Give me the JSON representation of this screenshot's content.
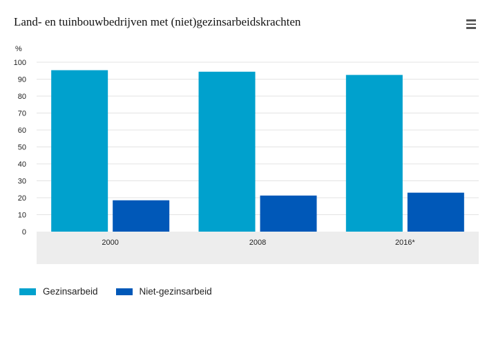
{
  "chart_data": {
    "type": "bar",
    "title": "Land- en tuinbouwbedrijven met (niet)gezinsarbeidskrachten",
    "ylabel": "%",
    "xlabel": "",
    "categories": [
      "2000",
      "2008",
      "2016*"
    ],
    "series": [
      {
        "name": "Gezinsarbeid",
        "color": "#00a1cd",
        "values": [
          95.3,
          94.4,
          92.5
        ]
      },
      {
        "name": "Niet-gezinsarbeid",
        "color": "#0058b8",
        "values": [
          18.5,
          21.3,
          23.0
        ]
      }
    ],
    "ylim": [
      0,
      100
    ],
    "yticks": [
      "0",
      "10",
      "20",
      "30",
      "40",
      "50",
      "60",
      "70",
      "80",
      "90",
      "100"
    ],
    "grid": true,
    "legend_position": "bottom-left"
  },
  "menu_icon": "hamburger-menu-icon"
}
